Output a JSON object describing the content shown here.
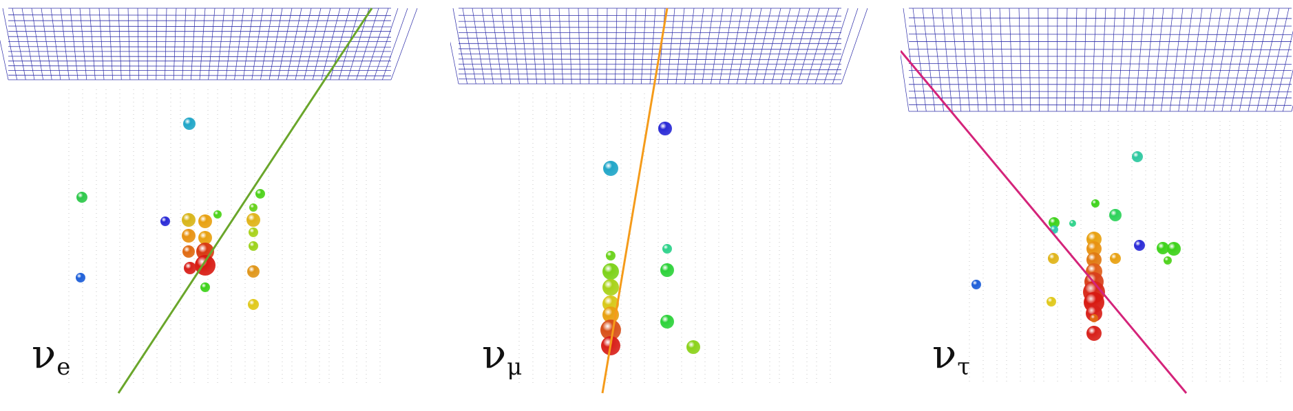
{
  "panels": [
    {
      "id": "electron",
      "symbol": "ν",
      "flavor": "e",
      "track_color": "#6aa62b",
      "track": [
        [
          172,
          572
        ],
        [
          540,
          12
        ]
      ],
      "grid_bottom": [
        [
          12,
          116
        ],
        [
          568,
          116
        ]
      ],
      "grid_slant": 0,
      "hits": [
        {
          "x": 275,
          "y": 180,
          "r": 9,
          "c": "#21a6c8"
        },
        {
          "x": 119,
          "y": 287,
          "r": 8,
          "c": "#2dc84a"
        },
        {
          "x": 240,
          "y": 322,
          "r": 7,
          "c": "#2a2ad6"
        },
        {
          "x": 117,
          "y": 404,
          "r": 7,
          "c": "#1e5fd8"
        },
        {
          "x": 316,
          "y": 312,
          "r": 6,
          "c": "#4dd21a"
        },
        {
          "x": 378,
          "y": 282,
          "r": 7,
          "c": "#4dd21a"
        },
        {
          "x": 368,
          "y": 302,
          "r": 6,
          "c": "#66d11a"
        },
        {
          "x": 274,
          "y": 320,
          "r": 10,
          "c": "#d8b51a"
        },
        {
          "x": 298,
          "y": 322,
          "r": 10,
          "c": "#e8a112"
        },
        {
          "x": 274,
          "y": 343,
          "r": 10,
          "c": "#e89212"
        },
        {
          "x": 298,
          "y": 346,
          "r": 10,
          "c": "#e8a112"
        },
        {
          "x": 274,
          "y": 366,
          "r": 9,
          "c": "#e06a12"
        },
        {
          "x": 298,
          "y": 366,
          "r": 13,
          "c": "#d83a12"
        },
        {
          "x": 298,
          "y": 386,
          "r": 15,
          "c": "#d81a12"
        },
        {
          "x": 276,
          "y": 390,
          "r": 9,
          "c": "#d8201a"
        },
        {
          "x": 298,
          "y": 418,
          "r": 7,
          "c": "#3dd21a"
        },
        {
          "x": 368,
          "y": 320,
          "r": 10,
          "c": "#e0b41a"
        },
        {
          "x": 368,
          "y": 338,
          "r": 7,
          "c": "#a8d21a"
        },
        {
          "x": 368,
          "y": 358,
          "r": 7,
          "c": "#9bd21a"
        },
        {
          "x": 368,
          "y": 395,
          "r": 9,
          "c": "#e0961a"
        },
        {
          "x": 368,
          "y": 443,
          "r": 8,
          "c": "#e0c81a"
        }
      ]
    },
    {
      "id": "muon",
      "symbol": "ν",
      "flavor": "μ",
      "track_color": "#f59b1a",
      "track": [
        [
          221,
          572
        ],
        [
          315,
          12
        ]
      ],
      "grid_bottom": [
        [
          12,
          122
        ],
        [
          568,
          122
        ]
      ],
      "grid_slant": 0,
      "hits": [
        {
          "x": 312,
          "y": 187,
          "r": 10,
          "c": "#2a2ad6"
        },
        {
          "x": 233,
          "y": 245,
          "r": 11,
          "c": "#21a6c8"
        },
        {
          "x": 315,
          "y": 362,
          "r": 7,
          "c": "#2dd28a"
        },
        {
          "x": 315,
          "y": 393,
          "r": 10,
          "c": "#2dd23a"
        },
        {
          "x": 315,
          "y": 468,
          "r": 10,
          "c": "#2dd23a"
        },
        {
          "x": 353,
          "y": 505,
          "r": 10,
          "c": "#8bd21a"
        },
        {
          "x": 233,
          "y": 372,
          "r": 7,
          "c": "#6ad21a"
        },
        {
          "x": 233,
          "y": 395,
          "r": 12,
          "c": "#7dd21a"
        },
        {
          "x": 233,
          "y": 418,
          "r": 12,
          "c": "#a8d21a"
        },
        {
          "x": 233,
          "y": 442,
          "r": 12,
          "c": "#d8c81a"
        },
        {
          "x": 233,
          "y": 458,
          "r": 12,
          "c": "#e8a112"
        },
        {
          "x": 233,
          "y": 480,
          "r": 15,
          "c": "#d8501a"
        },
        {
          "x": 233,
          "y": 503,
          "r": 14,
          "c": "#d8201a"
        }
      ]
    },
    {
      "id": "tau",
      "symbol": "ν",
      "flavor": "τ",
      "track_color": "#d4247a",
      "track": [
        [
          0,
          74
        ],
        [
          415,
          572
        ]
      ],
      "grid_bottom": [
        [
          12,
          162
        ],
        [
          568,
          162
        ]
      ],
      "grid_slant": 0,
      "hits": [
        {
          "x": 344,
          "y": 228,
          "r": 8,
          "c": "#2dc8a0"
        },
        {
          "x": 283,
          "y": 296,
          "r": 6,
          "c": "#3dd21a"
        },
        {
          "x": 312,
          "y": 313,
          "r": 9,
          "c": "#2dd25a"
        },
        {
          "x": 223,
          "y": 324,
          "r": 8,
          "c": "#3dd21a"
        },
        {
          "x": 250,
          "y": 325,
          "r": 5,
          "c": "#2dd28a"
        },
        {
          "x": 223,
          "y": 334,
          "r": 6,
          "c": "#2dc8b0"
        },
        {
          "x": 347,
          "y": 357,
          "r": 8,
          "c": "#2a2ad6"
        },
        {
          "x": 397,
          "y": 362,
          "r": 10,
          "c": "#3dd21a"
        },
        {
          "x": 381,
          "y": 361,
          "r": 9,
          "c": "#3dd21a"
        },
        {
          "x": 388,
          "y": 379,
          "r": 6,
          "c": "#4dd21a"
        },
        {
          "x": 312,
          "y": 376,
          "r": 8,
          "c": "#e8a112"
        },
        {
          "x": 222,
          "y": 376,
          "r": 8,
          "c": "#e0b41a"
        },
        {
          "x": 281,
          "y": 348,
          "r": 11,
          "c": "#e8a112"
        },
        {
          "x": 281,
          "y": 362,
          "r": 11,
          "c": "#e89212"
        },
        {
          "x": 281,
          "y": 378,
          "r": 11,
          "c": "#e07a12"
        },
        {
          "x": 281,
          "y": 395,
          "r": 12,
          "c": "#e0601a"
        },
        {
          "x": 281,
          "y": 410,
          "r": 14,
          "c": "#d8401a"
        },
        {
          "x": 281,
          "y": 425,
          "r": 16,
          "c": "#d82a1a"
        },
        {
          "x": 281,
          "y": 440,
          "r": 15,
          "c": "#d81a12"
        },
        {
          "x": 281,
          "y": 456,
          "r": 12,
          "c": "#d8201a"
        },
        {
          "x": 281,
          "y": 463,
          "r": 6,
          "c": "#e06a12"
        },
        {
          "x": 281,
          "y": 485,
          "r": 11,
          "c": "#d8201a"
        },
        {
          "x": 110,
          "y": 414,
          "r": 7,
          "c": "#1e5fd8"
        },
        {
          "x": 219,
          "y": 439,
          "r": 7,
          "c": "#e0c81a"
        }
      ]
    }
  ]
}
